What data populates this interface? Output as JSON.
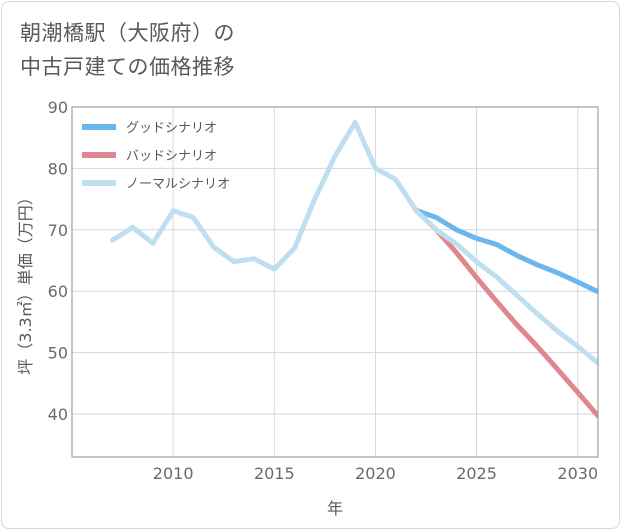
{
  "title_line1": "朝潮橋駅（大阪府）の",
  "title_line2": "中古戸建ての価格推移",
  "chart_data": {
    "type": "line",
    "title": "朝潮橋駅（大阪府）の中古戸建ての価格推移",
    "xlabel": "年",
    "ylabel": "坪（3.3㎡）単価（万円）",
    "xlim": [
      2005,
      2031
    ],
    "ylim": [
      33,
      90
    ],
    "xticks": [
      2010,
      2015,
      2020,
      2025,
      2030
    ],
    "yticks": [
      40,
      50,
      60,
      70,
      80,
      90
    ],
    "grid": true,
    "legend_position": "top-left",
    "series": [
      {
        "name": "グッドシナリオ",
        "color": "#6cb6ee",
        "x": [
          2022,
          2023,
          2024,
          2025,
          2026,
          2027,
          2028,
          2029,
          2030,
          2031
        ],
        "y": [
          73.2,
          72.0,
          70.0,
          68.6,
          67.6,
          65.8,
          64.3,
          63.0,
          61.5,
          59.9
        ]
      },
      {
        "name": "バッドシナリオ",
        "color": "#e0868e",
        "x": [
          2022,
          2023,
          2024,
          2025,
          2026,
          2027,
          2028,
          2029,
          2030,
          2031
        ],
        "y": [
          73.2,
          70.0,
          66.3,
          62.2,
          58.3,
          54.5,
          51.0,
          47.3,
          43.5,
          39.7
        ]
      },
      {
        "name": "ノーマルシナリオ",
        "color": "#bfdff0",
        "x": [
          2007,
          2008,
          2009,
          2010,
          2011,
          2012,
          2013,
          2014,
          2015,
          2016,
          2017,
          2018,
          2019,
          2020,
          2021,
          2022,
          2023,
          2024,
          2025,
          2026,
          2027,
          2028,
          2029,
          2030,
          2031
        ],
        "y": [
          68.3,
          70.4,
          67.8,
          73.1,
          72.0,
          67.2,
          64.8,
          65.3,
          63.6,
          67.0,
          75.0,
          82.0,
          87.5,
          80.0,
          78.2,
          73.2,
          70.0,
          67.7,
          64.8,
          62.3,
          59.3,
          56.3,
          53.5,
          51.0,
          48.3
        ]
      }
    ]
  }
}
